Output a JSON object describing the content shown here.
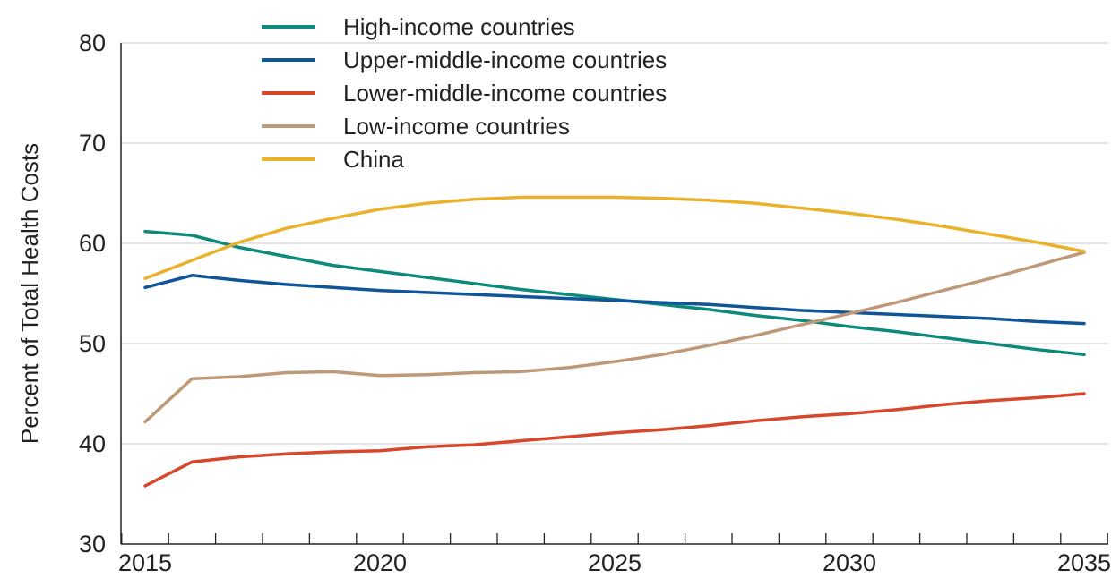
{
  "chart_data": {
    "type": "line",
    "title": "",
    "xlabel": "",
    "ylabel": "Percent of Total Health Costs",
    "xlim": [
      2015,
      2035
    ],
    "ylim": [
      30,
      80
    ],
    "x_ticks": [
      2015,
      2020,
      2025,
      2030,
      2035
    ],
    "y_ticks": [
      30,
      40,
      50,
      60,
      70,
      80
    ],
    "grid": true,
    "legend_position": "top-left",
    "series": [
      {
        "name": "High-income countries",
        "color": "#0e8a7a",
        "x": [
          2015,
          2016,
          2017,
          2018,
          2019,
          2020,
          2021,
          2022,
          2023,
          2024,
          2025,
          2026,
          2027,
          2028,
          2029,
          2030,
          2031,
          2032,
          2033,
          2034,
          2035
        ],
        "values": [
          61.2,
          60.8,
          59.6,
          58.7,
          57.8,
          57.2,
          56.6,
          56.0,
          55.4,
          54.9,
          54.4,
          53.9,
          53.4,
          52.8,
          52.3,
          51.7,
          51.2,
          50.6,
          50.0,
          49.4,
          48.9
        ]
      },
      {
        "name": "Upper-middle-income countries",
        "color": "#0f5597",
        "x": [
          2015,
          2016,
          2017,
          2018,
          2019,
          2020,
          2021,
          2022,
          2023,
          2024,
          2025,
          2026,
          2027,
          2028,
          2029,
          2030,
          2031,
          2032,
          2033,
          2034,
          2035
        ],
        "values": [
          55.6,
          56.8,
          56.3,
          55.9,
          55.6,
          55.3,
          55.1,
          54.9,
          54.7,
          54.5,
          54.3,
          54.1,
          53.9,
          53.6,
          53.3,
          53.1,
          52.9,
          52.7,
          52.5,
          52.2,
          52.0
        ]
      },
      {
        "name": "Lower-middle-income countries",
        "color": "#d6472b",
        "x": [
          2015,
          2016,
          2017,
          2018,
          2019,
          2020,
          2021,
          2022,
          2023,
          2024,
          2025,
          2026,
          2027,
          2028,
          2029,
          2030,
          2031,
          2032,
          2033,
          2034,
          2035
        ],
        "values": [
          35.8,
          38.2,
          38.7,
          39.0,
          39.2,
          39.3,
          39.7,
          39.9,
          40.3,
          40.7,
          41.1,
          41.4,
          41.8,
          42.3,
          42.7,
          43.0,
          43.4,
          43.9,
          44.3,
          44.6,
          45.0
        ]
      },
      {
        "name": "Low-income countries",
        "color": "#bf9878",
        "x": [
          2015,
          2016,
          2017,
          2018,
          2019,
          2020,
          2021,
          2022,
          2023,
          2024,
          2025,
          2026,
          2027,
          2028,
          2029,
          2030,
          2031,
          2032,
          2033,
          2034,
          2035
        ],
        "values": [
          42.2,
          46.5,
          46.7,
          47.1,
          47.2,
          46.8,
          46.9,
          47.1,
          47.2,
          47.6,
          48.2,
          48.9,
          49.8,
          50.8,
          51.9,
          53.0,
          54.1,
          55.3,
          56.5,
          57.8,
          59.1
        ]
      },
      {
        "name": "China",
        "color": "#eab22a",
        "x": [
          2015,
          2016,
          2017,
          2018,
          2019,
          2020,
          2021,
          2022,
          2023,
          2024,
          2025,
          2026,
          2027,
          2028,
          2029,
          2030,
          2031,
          2032,
          2033,
          2034,
          2035
        ],
        "values": [
          56.5,
          58.3,
          60.1,
          61.5,
          62.5,
          63.4,
          64.0,
          64.4,
          64.6,
          64.6,
          64.6,
          64.5,
          64.3,
          64.0,
          63.5,
          63.0,
          62.4,
          61.7,
          60.9,
          60.1,
          59.2
        ]
      }
    ]
  }
}
